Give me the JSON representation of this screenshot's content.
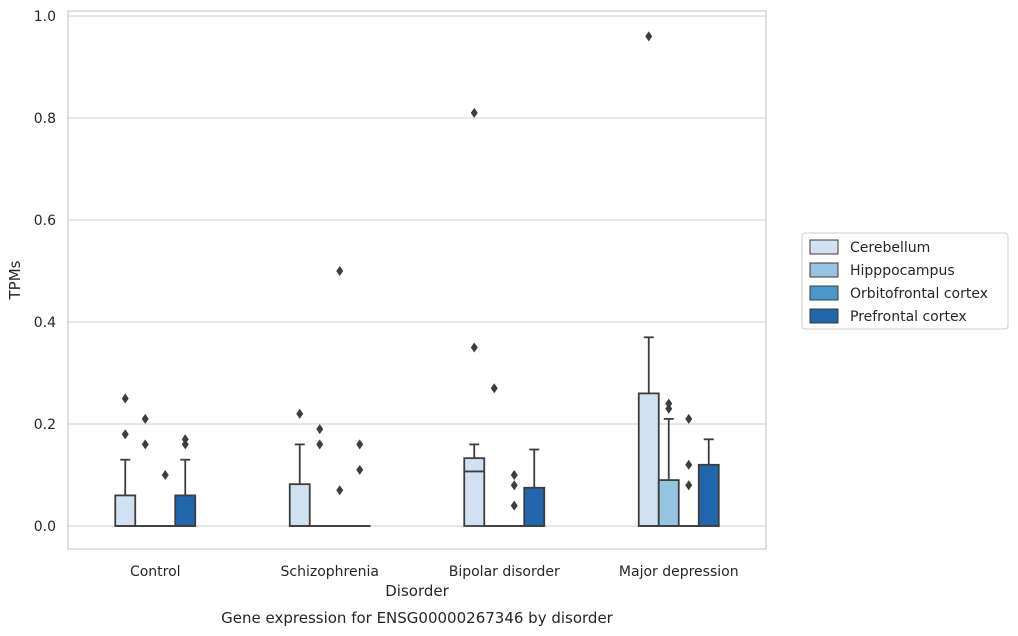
{
  "chart_data": {
    "type": "box",
    "caption": "Gene expression for ENSG00000267346 by disorder",
    "xlabel": "Disorder",
    "ylabel": "TPMs",
    "ylim": [
      -0.045,
      1.01
    ],
    "yticks": [
      0.0,
      0.2,
      0.4,
      0.6,
      0.8,
      1.0
    ],
    "ytick_labels": [
      "0.0",
      "0.2",
      "0.4",
      "0.6",
      "0.8",
      "1.0"
    ],
    "grid": true,
    "legend_position": "right-outside",
    "categories": [
      "Control",
      "Schizophrenia",
      "Bipolar disorder",
      "Major depression"
    ],
    "series": [
      {
        "name": "Cerebellum",
        "color": "#d0e1f2",
        "boxes": [
          {
            "q1": 0.0,
            "median": 0.0,
            "q3": 0.06,
            "whisker_low": 0.0,
            "whisker_high": 0.13,
            "outliers": [
              0.18,
              0.25
            ]
          },
          {
            "q1": 0.0,
            "median": 0.0,
            "q3": 0.082,
            "whisker_low": 0.0,
            "whisker_high": 0.16,
            "outliers": [
              0.22
            ]
          },
          {
            "q1": 0.0,
            "median": 0.107,
            "q3": 0.133,
            "whisker_low": 0.0,
            "whisker_high": 0.16,
            "outliers": [
              0.35,
              0.81
            ]
          },
          {
            "q1": 0.0,
            "median": 0.0,
            "q3": 0.26,
            "whisker_low": 0.0,
            "whisker_high": 0.37,
            "outliers": [
              0.96
            ]
          }
        ]
      },
      {
        "name": "Hipppocampus",
        "color": "#94c4df",
        "boxes": [
          {
            "q1": 0.0,
            "median": 0.0,
            "q3": 0.0,
            "whisker_low": 0.0,
            "whisker_high": 0.0,
            "outliers": [
              0.16,
              0.21
            ]
          },
          {
            "q1": 0.0,
            "median": 0.0,
            "q3": 0.0,
            "whisker_low": 0.0,
            "whisker_high": 0.0,
            "outliers": [
              0.16,
              0.19
            ]
          },
          {
            "q1": 0.0,
            "median": 0.0,
            "q3": 0.0,
            "whisker_low": 0.0,
            "whisker_high": 0.0,
            "outliers": [
              0.27
            ]
          },
          {
            "q1": 0.0,
            "median": 0.0,
            "q3": 0.09,
            "whisker_low": 0.0,
            "whisker_high": 0.21,
            "outliers": [
              0.23,
              0.24
            ]
          }
        ]
      },
      {
        "name": "Orbitofrontal cortex",
        "color": "#4a98c9",
        "boxes": [
          {
            "q1": 0.0,
            "median": 0.0,
            "q3": 0.0,
            "whisker_low": 0.0,
            "whisker_high": 0.0,
            "outliers": [
              0.1
            ]
          },
          {
            "q1": 0.0,
            "median": 0.0,
            "q3": 0.0,
            "whisker_low": 0.0,
            "whisker_high": 0.0,
            "outliers": [
              0.07,
              0.5
            ]
          },
          {
            "q1": 0.0,
            "median": 0.0,
            "q3": 0.0,
            "whisker_low": 0.0,
            "whisker_high": 0.0,
            "outliers": [
              0.04,
              0.08,
              0.1
            ]
          },
          {
            "q1": 0.0,
            "median": 0.0,
            "q3": 0.0,
            "whisker_low": 0.0,
            "whisker_high": 0.0,
            "outliers": [
              0.08,
              0.12,
              0.21
            ]
          }
        ]
      },
      {
        "name": "Prefrontal cortex",
        "color": "#2166ac",
        "boxes": [
          {
            "q1": 0.0,
            "median": 0.0,
            "q3": 0.06,
            "whisker_low": 0.0,
            "whisker_high": 0.13,
            "outliers": [
              0.16,
              0.17
            ]
          },
          {
            "q1": 0.0,
            "median": 0.0,
            "q3": 0.0,
            "whisker_low": 0.0,
            "whisker_high": 0.0,
            "outliers": [
              0.11,
              0.16
            ]
          },
          {
            "q1": 0.0,
            "median": 0.0,
            "q3": 0.075,
            "whisker_low": 0.0,
            "whisker_high": 0.15,
            "outliers": []
          },
          {
            "q1": 0.0,
            "median": 0.0,
            "q3": 0.12,
            "whisker_low": 0.0,
            "whisker_high": 0.17,
            "outliers": []
          }
        ]
      }
    ]
  }
}
